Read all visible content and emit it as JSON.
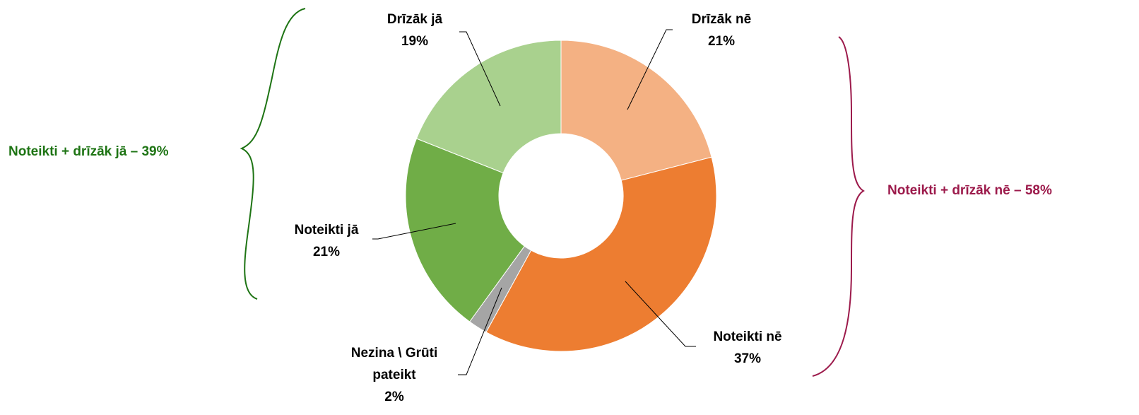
{
  "chart_data": {
    "type": "pie",
    "donut": true,
    "categories": [
      "Drīzāk nē",
      "Noteikti nē",
      "Nezina \\ Grūti pateikt",
      "Noteikti jā",
      "Drīzāk jā"
    ],
    "values": [
      21,
      37,
      2,
      21,
      19
    ],
    "value_labels": [
      "21%",
      "37%",
      "2%",
      "21%",
      "19%"
    ],
    "colors": [
      "#f4b183",
      "#ed7d31",
      "#a5a5a5",
      "#70ad47",
      "#a9d18e"
    ],
    "annotations": [
      {
        "text": "Noteikti + drīzāk jā – 39%",
        "color": "#1e7414"
      },
      {
        "text": "Noteikti + drīzāk nē – 58%",
        "color": "#9c1a4b"
      }
    ]
  }
}
